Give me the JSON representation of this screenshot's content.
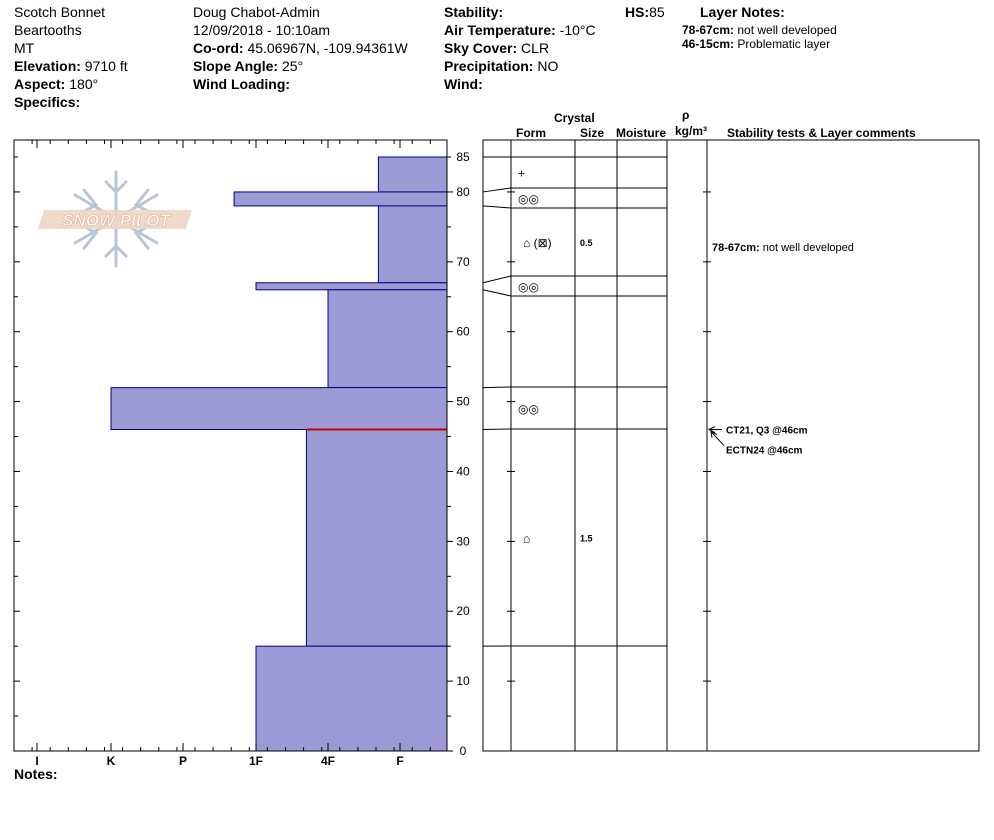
{
  "header": {
    "location": "Scotch Bonnet",
    "range": "Beartooths",
    "state": "MT",
    "elevation_label": "Elevation:",
    "elevation": "9710 ft",
    "aspect_label": "Aspect:",
    "aspect": "180°",
    "specifics_label": "Specifics:",
    "observer": "Doug Chabot-Admin",
    "datetime": "12/09/2018 - 10:10am",
    "coord_label": "Co-ord:",
    "coord": "45.06967N, -109.94361W",
    "slope_label": "Slope Angle:",
    "slope": "25°",
    "wind_loading_label": "Wind Loading:",
    "stability_label": "Stability:",
    "air_temp_label": "Air Temperature:",
    "air_temp": "-10°C",
    "sky_label": "Sky Cover:",
    "sky": "CLR",
    "precip_label": "Precipitation:",
    "precip": "NO",
    "wind_label": "Wind:",
    "hs_label": "HS:",
    "hs": "85",
    "layer_notes_label": "Layer Notes:",
    "layer_notes": [
      {
        "range": "78-67cm:",
        "text": "not well developed"
      },
      {
        "range": "46-15cm:",
        "text": "Problematic layer"
      }
    ]
  },
  "table_headers": {
    "crystal": "Crystal",
    "form": "Form",
    "size": "Size",
    "moisture": "Moisture",
    "rho": "ρ",
    "density_unit": "kg/m³",
    "stability": "Stability tests & Layer comments"
  },
  "notes_label": "Notes:",
  "logo_text": "SNOW PILOT",
  "colors": {
    "hardness_fill": "#9c9bd6",
    "hardness_edge": "#00007f",
    "test_line": "#c00000"
  },
  "chart_data": {
    "type": "bar",
    "orientation": "horizontal",
    "y_label": "",
    "y_range": [
      0,
      85
    ],
    "y_ticks": [
      "0",
      "10",
      "20",
      "30",
      "40",
      "50",
      "60",
      "70",
      "80",
      "85"
    ],
    "x_ticks": [
      "I",
      "K",
      "P",
      "1F",
      "4F",
      "F"
    ],
    "x_scale": "hand hardness, increasing to the left",
    "layers": [
      {
        "top": 85,
        "bottom": 80,
        "hardness": "F-"
      },
      {
        "top": 80,
        "bottom": 78,
        "hardness": "1F-"
      },
      {
        "top": 78,
        "bottom": 67,
        "hardness": "F-"
      },
      {
        "top": 67,
        "bottom": 66,
        "hardness": "1F"
      },
      {
        "top": 66,
        "bottom": 52,
        "hardness": "4F"
      },
      {
        "top": 52,
        "bottom": 46,
        "hardness": "K"
      },
      {
        "top": 46,
        "bottom": 15,
        "hardness": "4F-"
      },
      {
        "top": 15,
        "bottom": 0,
        "hardness": "1F"
      }
    ],
    "hardness_index": {
      "I": 1,
      "K": 2,
      "P": 3,
      "1F": 4,
      "4F": 5,
      "F": 6,
      "F-": 5.7,
      "1F-": 3.7,
      "4F-": 4.7
    },
    "test_line_depth": 46,
    "rows": [
      {
        "top": 85,
        "bottom": 80,
        "form": "+",
        "size": ""
      },
      {
        "top": 80,
        "bottom": 78,
        "form": "◎◎",
        "size": ""
      },
      {
        "top": 78,
        "bottom": 67,
        "form": "⌂ (⊠)",
        "size": "0.5"
      },
      {
        "top": 67,
        "bottom": 66,
        "form": "◎◎",
        "size": ""
      },
      {
        "top": 66,
        "bottom": 52,
        "form": "",
        "size": ""
      },
      {
        "top": 52,
        "bottom": 46,
        "form": "◎◎",
        "size": ""
      },
      {
        "top": 46,
        "bottom": 15,
        "form": "⌂",
        "size": "1.5"
      },
      {
        "top": 15,
        "bottom": 0,
        "form": "",
        "size": ""
      }
    ],
    "layer_comments": [
      {
        "depth": 78,
        "label": "78-67cm:",
        "text": "not well developed"
      }
    ],
    "stability_tests": [
      {
        "depth": 46,
        "text": "CT21, Q3 @46cm"
      },
      {
        "depth": 46,
        "text": "ECTN24 @46cm"
      }
    ]
  }
}
